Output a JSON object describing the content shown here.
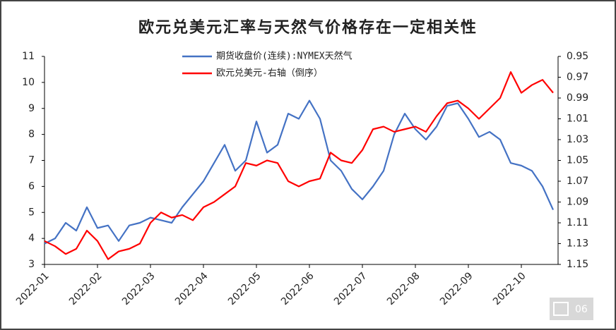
{
  "chart_data": {
    "type": "line",
    "title": "欧元兑美元汇率与天然气价格存在一定相关性",
    "badge": "06",
    "categories": [
      "2022-01",
      null,
      null,
      null,
      null,
      "2022-02",
      null,
      null,
      null,
      null,
      "2022-03",
      null,
      null,
      null,
      null,
      "2022-04",
      null,
      null,
      null,
      null,
      "2022-05",
      null,
      null,
      null,
      null,
      "2022-06",
      null,
      null,
      null,
      null,
      "2022-07",
      null,
      null,
      null,
      null,
      "2022-08",
      null,
      null,
      null,
      null,
      "2022-09",
      null,
      null,
      null,
      null,
      "2022-10",
      null,
      null,
      null
    ],
    "series": [
      {
        "name": "期货收盘价(连续):NYMEX天然气",
        "color": "#4472c4",
        "values": [
          3.8,
          4.0,
          4.6,
          4.3,
          5.2,
          4.4,
          4.5,
          3.9,
          4.5,
          4.6,
          4.8,
          4.7,
          4.6,
          5.2,
          5.7,
          6.2,
          6.9,
          7.6,
          6.6,
          7.0,
          8.5,
          7.3,
          7.6,
          8.8,
          8.6,
          9.3,
          8.6,
          7.0,
          6.6,
          5.9,
          5.5,
          6.0,
          6.6,
          8.0,
          8.8,
          8.2,
          7.8,
          8.3,
          9.1,
          9.2,
          8.6,
          7.9,
          8.1,
          7.8,
          6.9,
          6.8,
          6.6,
          6.0,
          5.1
        ]
      },
      {
        "name": "欧元兑美元-右轴（倒序）",
        "color": "#ff0000",
        "axis": "y2",
        "values": [
          1.1275,
          1.1325,
          1.14,
          1.135,
          1.1175,
          1.1275,
          1.145,
          1.1375,
          1.135,
          1.13,
          1.11,
          1.1,
          1.105,
          1.1025,
          1.1075,
          1.095,
          1.09,
          1.0825,
          1.075,
          1.0525,
          1.055,
          1.05,
          1.0525,
          1.07,
          1.075,
          1.07,
          1.0675,
          1.0425,
          1.05,
          1.0525,
          1.04,
          1.02,
          1.0175,
          1.0225,
          1.02,
          1.0175,
          1.0225,
          1.0075,
          0.995,
          0.9925,
          1.0,
          1.01,
          1.0,
          0.99,
          0.965,
          0.985,
          0.9775,
          0.9725,
          0.985
        ]
      }
    ],
    "ylim": [
      3,
      11
    ],
    "yticks": [
      3,
      4,
      5,
      6,
      7,
      8,
      9,
      10,
      11
    ],
    "y2lim": [
      1.15,
      0.95
    ],
    "y2ticks": [
      0.95,
      0.97,
      0.99,
      1.01,
      1.03,
      1.05,
      1.07,
      1.09,
      1.11,
      1.13,
      1.15
    ],
    "grid": false
  }
}
